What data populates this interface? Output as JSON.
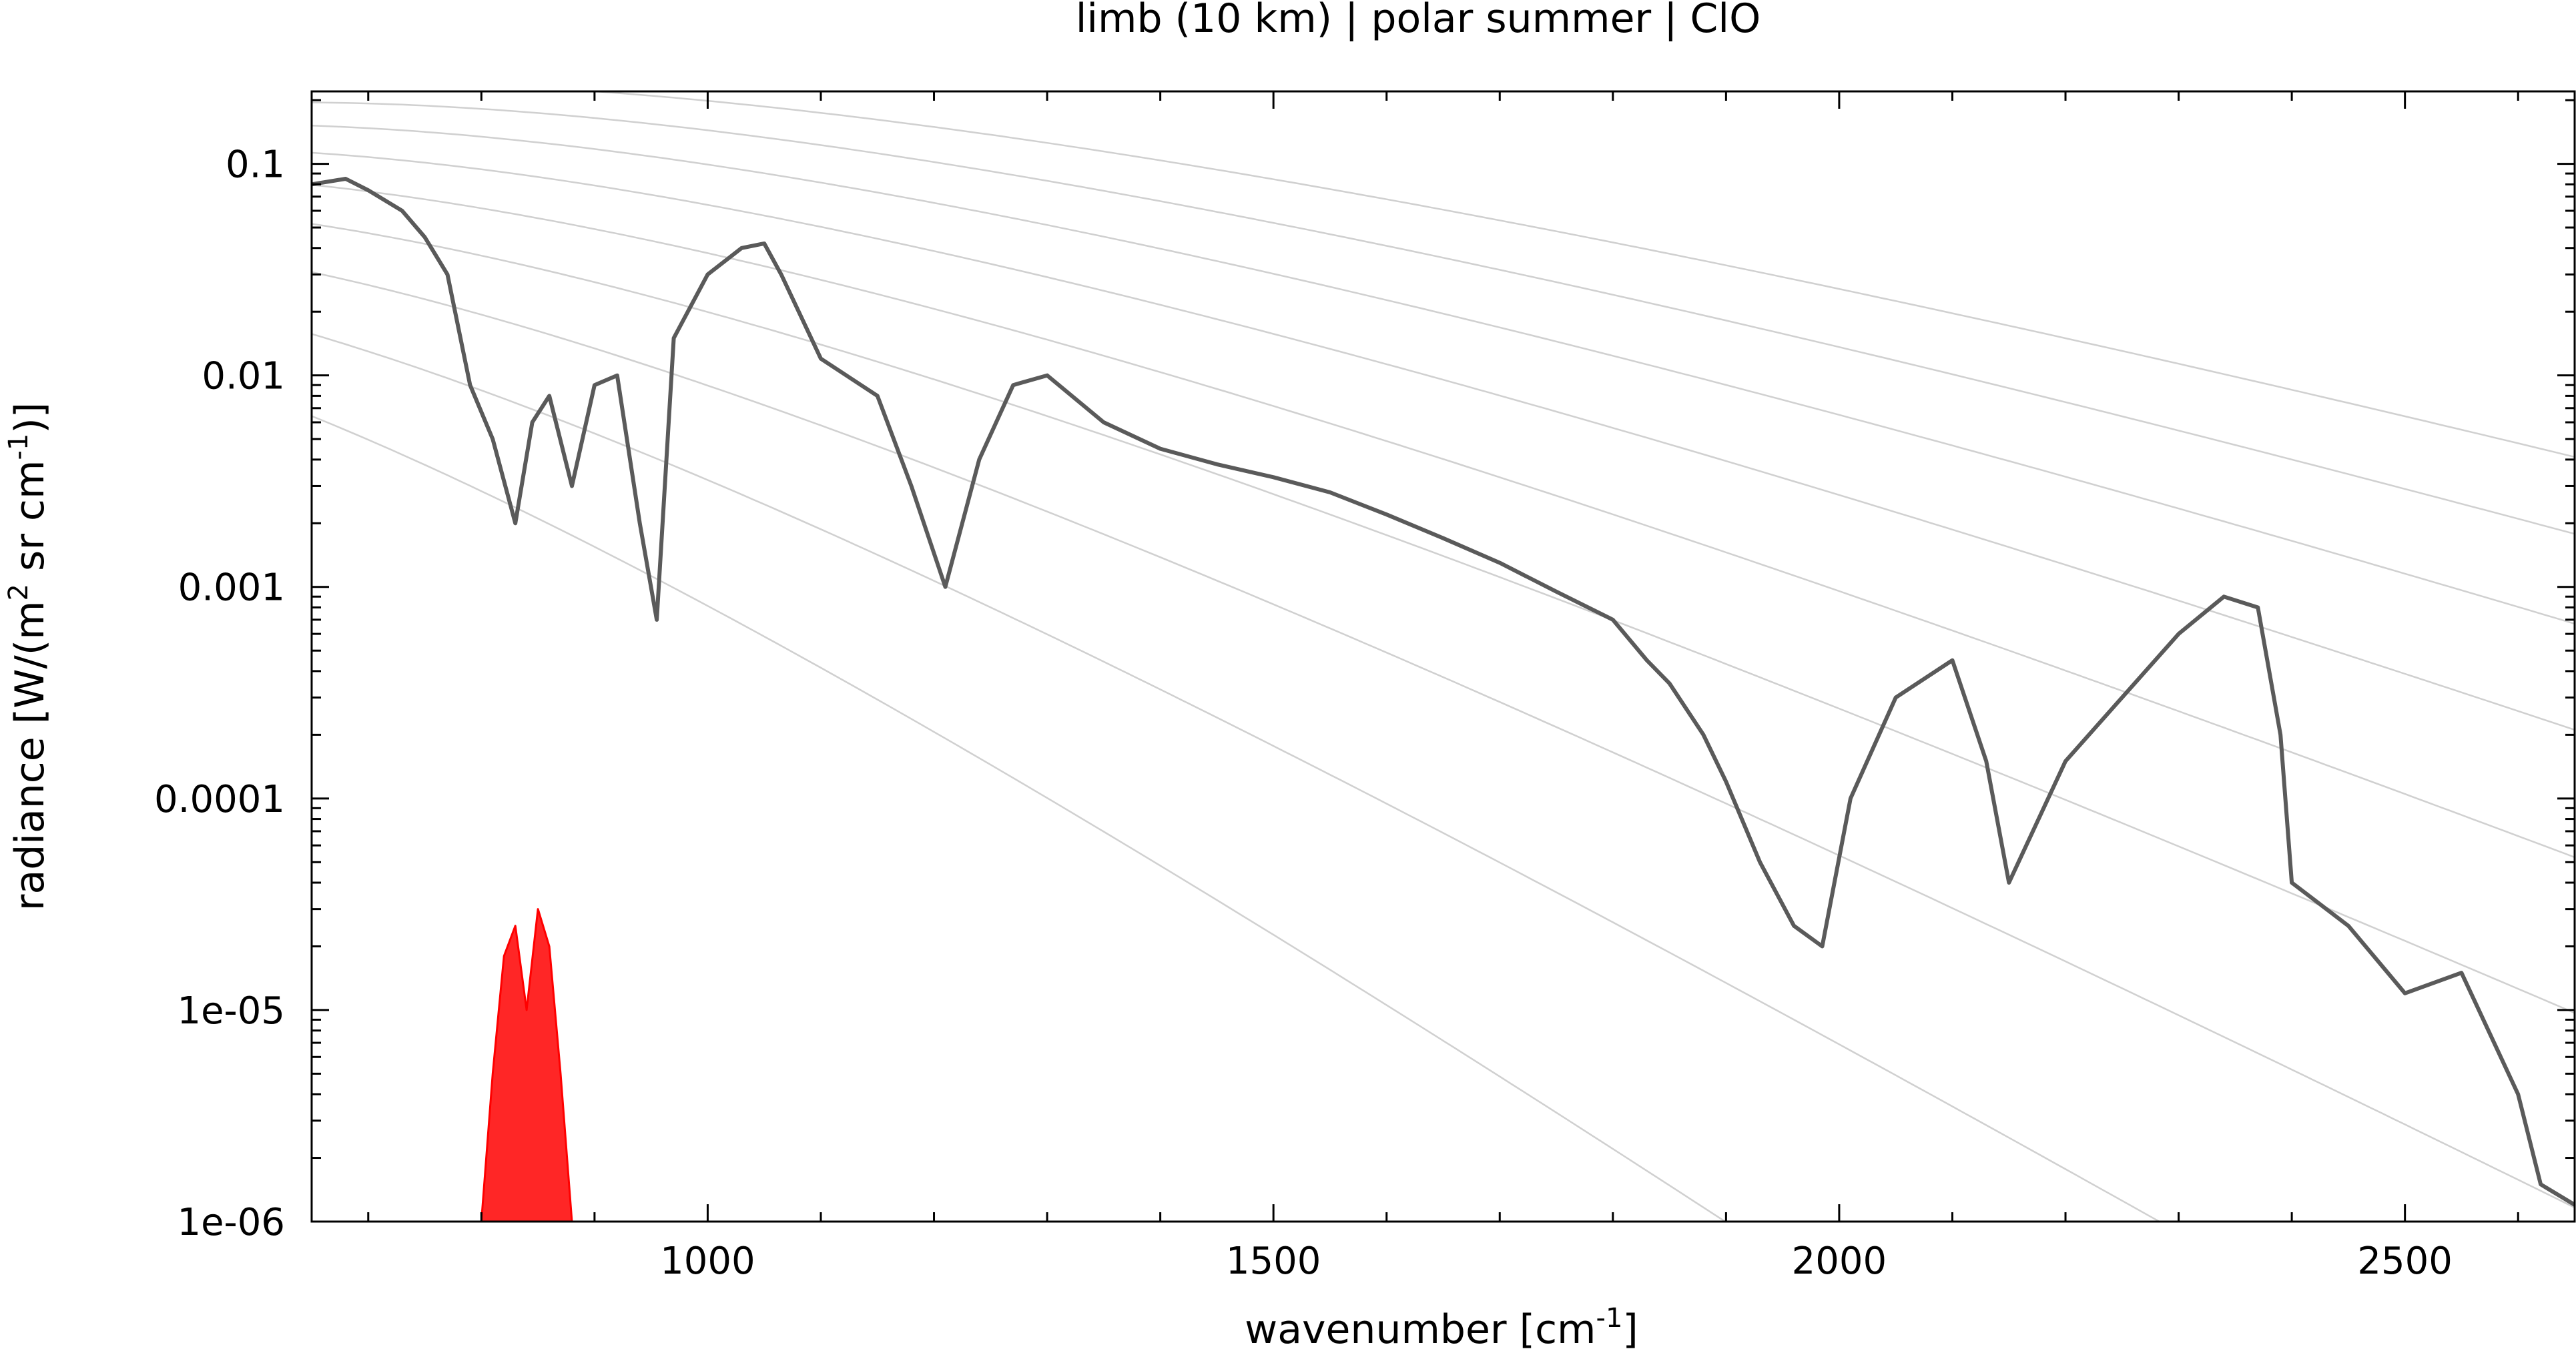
{
  "chart_data": {
    "type": "line",
    "title": "limb (10 km) | polar summer | ClO",
    "xlabel": {
      "text": "wavenumber [cm",
      "sup": "-1",
      "tail": "]"
    },
    "ylabel": {
      "p1": "radiance [W/(m",
      "s1": "2",
      "p2": " sr cm",
      "s2": "-1",
      "p3": ")]"
    },
    "xlim": [
      650,
      2650
    ],
    "ylim": [
      1e-06,
      0.22
    ],
    "yscale": "log",
    "xticks": [
      1000,
      1500,
      2000,
      2500
    ],
    "xtick_labels": [
      "1000",
      "1500",
      "2000",
      "2500"
    ],
    "yticks": [
      0.1,
      0.01,
      0.001,
      0.0001,
      1e-05,
      1e-06
    ],
    "ytick_labels": [
      "0.1",
      "0.01",
      "0.001",
      "0.0001",
      "1e-05",
      "1e-06"
    ],
    "grid": false,
    "colors": {
      "spectrum_dark": "#5a5a5a",
      "spectrum_light": "#b4b4b4",
      "planck": "#d0d0d0",
      "clo": "#ff0000"
    },
    "planck_curves": {
      "temperatures_K": [
        150,
        175,
        200,
        225,
        250,
        275,
        300,
        325,
        350
      ]
    },
    "series": [
      {
        "color": "#5a5a5a",
        "x": [
          650,
          680,
          700,
          730,
          750,
          770,
          790,
          810,
          830,
          845,
          860,
          880,
          900,
          920,
          940,
          955,
          970,
          1000,
          1030,
          1050,
          1065,
          1100,
          1150,
          1180,
          1210,
          1240,
          1270,
          1300,
          1350,
          1400,
          1450,
          1500,
          1550,
          1600,
          1650,
          1700,
          1750,
          1800,
          1830,
          1850,
          1880,
          1900,
          1930,
          1960,
          1985,
          2010,
          2050,
          2100,
          2130,
          2150,
          2200,
          2250,
          2300,
          2340,
          2370,
          2390,
          2400,
          2450,
          2500,
          2550,
          2600,
          2620,
          2650
        ],
        "y": [
          0.08,
          0.085,
          0.075,
          0.06,
          0.045,
          0.03,
          0.009,
          0.005,
          0.002,
          0.006,
          0.008,
          0.003,
          0.009,
          0.01,
          0.002,
          0.0007,
          0.015,
          0.03,
          0.04,
          0.042,
          0.03,
          0.012,
          0.008,
          0.003,
          0.001,
          0.004,
          0.009,
          0.01,
          0.006,
          0.0045,
          0.0038,
          0.0033,
          0.0028,
          0.0022,
          0.0017,
          0.0013,
          0.00095,
          0.0007,
          0.00045,
          0.00035,
          0.0002,
          0.00012,
          5e-05,
          2.5e-05,
          2e-05,
          0.0001,
          0.0003,
          0.00045,
          0.00015,
          4e-05,
          0.00015,
          0.0003,
          0.0006,
          0.0009,
          0.0008,
          0.0002,
          4e-05,
          2.5e-05,
          1.2e-05,
          1.5e-05,
          4e-06,
          1.5e-06,
          1.2e-06
        ]
      },
      {
        "color": "#ff0000",
        "x": [
          800,
          810,
          820,
          830,
          840,
          850,
          860,
          870,
          880
        ],
        "y": [
          1e-06,
          5e-06,
          1.8e-05,
          2.5e-05,
          1e-05,
          3e-05,
          2e-05,
          5e-06,
          1e-06
        ]
      }
    ]
  }
}
